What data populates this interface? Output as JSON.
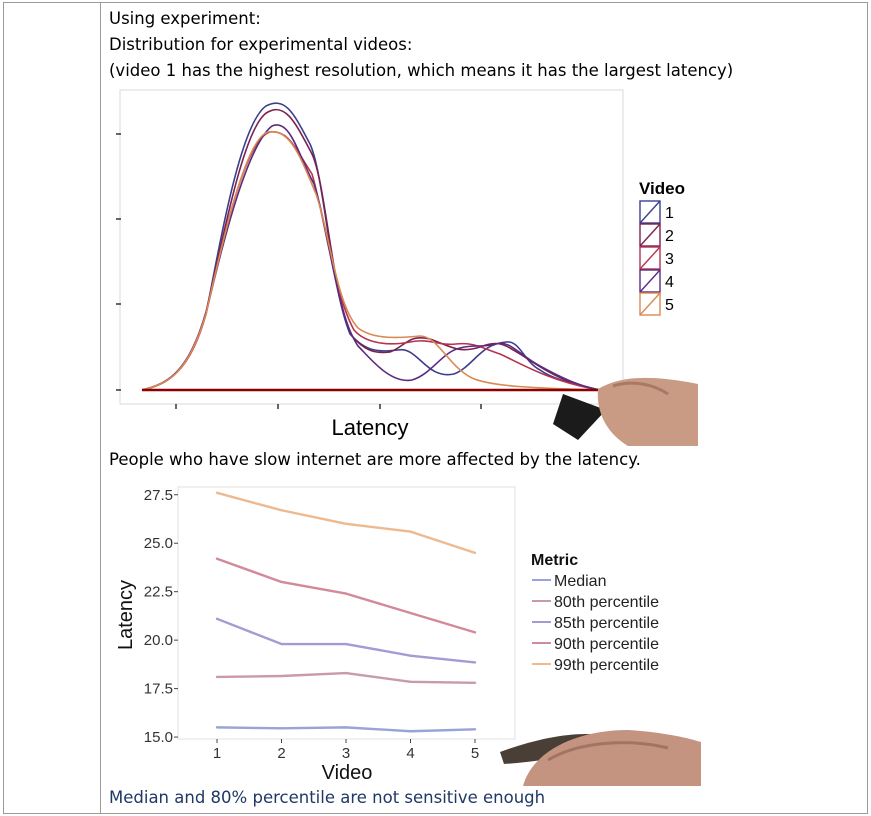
{
  "intro_lines": [
    "Using experiment:",
    "Distribution for experimental videos:",
    "(video 1 has the highest resolution, which means it has the largest latency)"
  ],
  "caption_middle": "People who have slow internet are more affected by the latency.",
  "caption_bottom": "Median and 80% percentile are not sensitive enough",
  "chart_data": [
    {
      "type": "area",
      "xlabel": "Latency",
      "ylabel": "",
      "legend_title": "Video",
      "legend_position": "right",
      "series": [
        {
          "name": "1",
          "color": "#3b3f8c"
        },
        {
          "name": "2",
          "color": "#7a2150"
        },
        {
          "name": "3",
          "color": "#b5334f"
        },
        {
          "name": "4",
          "color": "#5a2c80"
        },
        {
          "name": "5",
          "color": "#d88a52"
        }
      ],
      "grid": false
    },
    {
      "type": "line",
      "xlabel": "Video",
      "ylabel": "Latency",
      "legend_title": "Metric",
      "legend_position": "right",
      "x": [
        1,
        2,
        3,
        4,
        5
      ],
      "y_ticks": [
        "15.0",
        "17.5",
        "20.0",
        "22.5",
        "25.0",
        "27.5"
      ],
      "x_ticks": [
        "1",
        "2",
        "3",
        "4",
        "5"
      ],
      "ylim": [
        14.9,
        27.9
      ],
      "grid": false,
      "series": [
        {
          "name": "Median",
          "color": "#9aa3d8",
          "values": [
            15.5,
            15.45,
            15.5,
            15.3,
            15.4
          ]
        },
        {
          "name": "80th percentile",
          "color": "#c89aab",
          "values": [
            18.1,
            18.15,
            18.3,
            17.85,
            17.8
          ]
        },
        {
          "name": "85th percentile",
          "color": "#a79ad4",
          "values": [
            21.1,
            19.8,
            19.8,
            19.2,
            18.85
          ]
        },
        {
          "name": "90th percentile",
          "color": "#d28a9a",
          "values": [
            24.2,
            23.0,
            22.4,
            21.4,
            20.4
          ]
        },
        {
          "name": "99th percentile",
          "color": "#eeb98e",
          "values": [
            27.6,
            26.7,
            26.0,
            25.6,
            24.5
          ]
        }
      ]
    }
  ]
}
